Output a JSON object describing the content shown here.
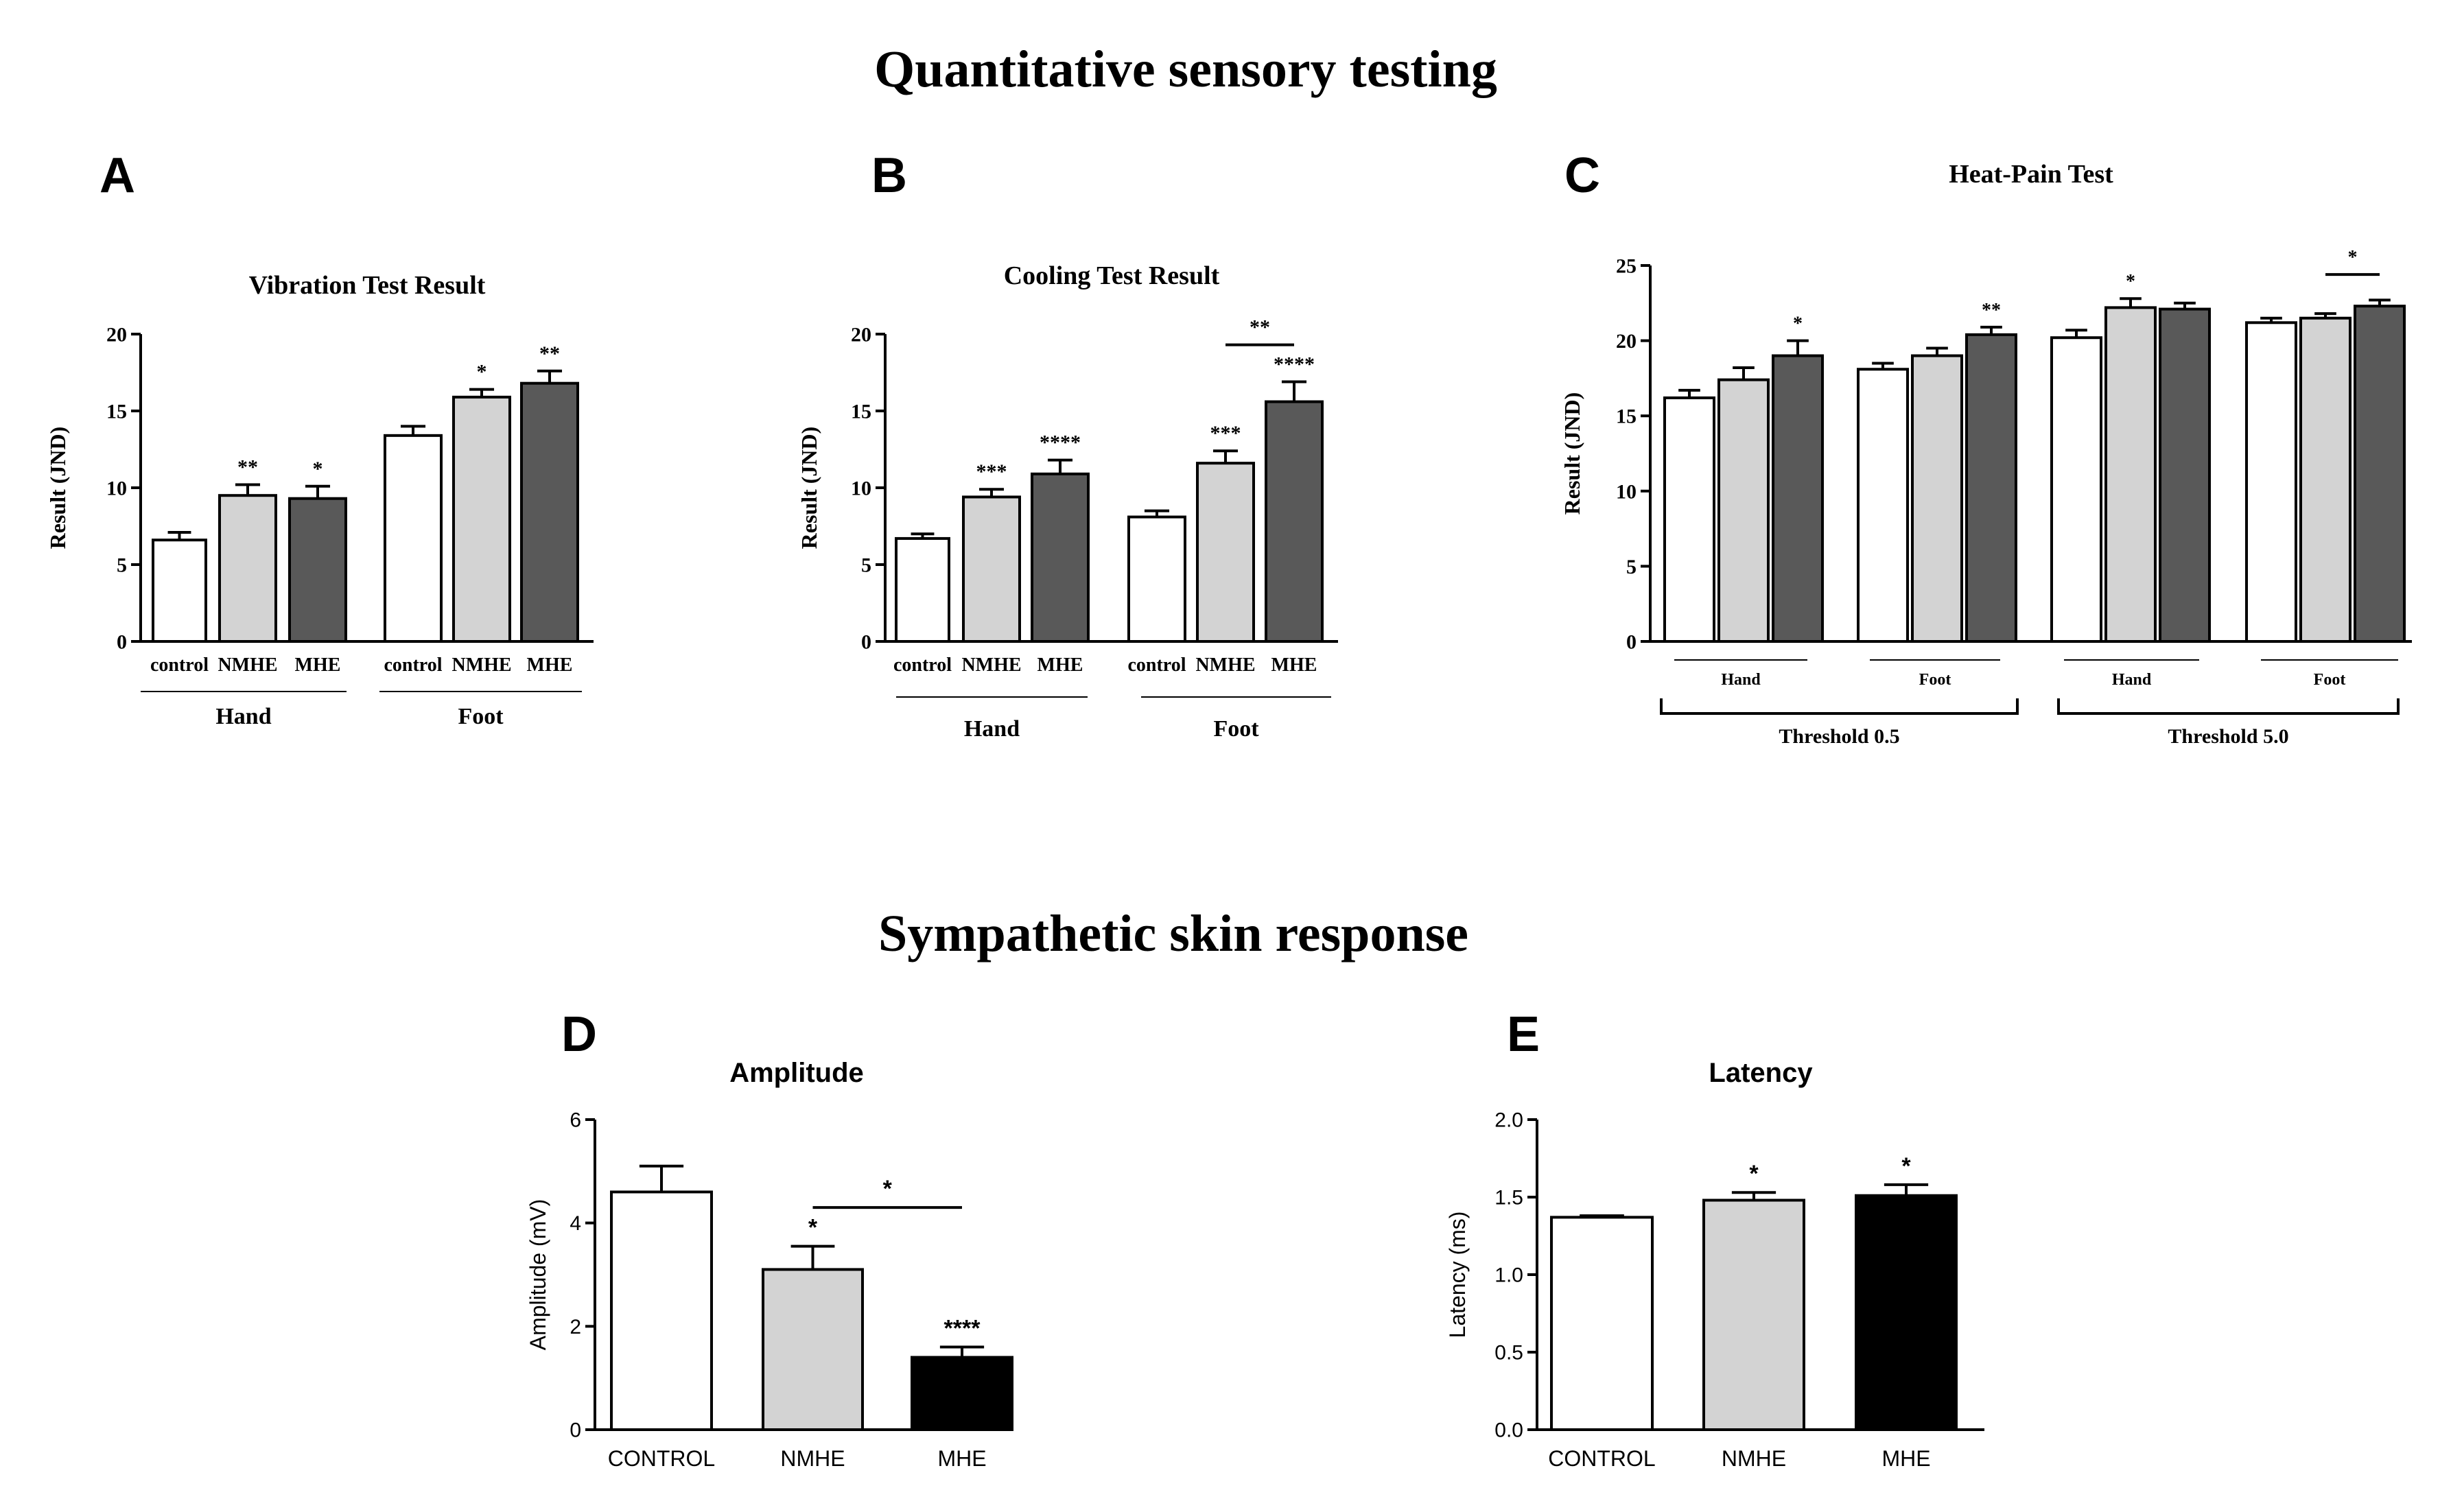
{
  "section_titles": {
    "sensory": "Quantitative sensory testing",
    "sympathetic": "Sympathetic skin response"
  },
  "panel_letters": [
    "A",
    "B",
    "C",
    "D",
    "E"
  ],
  "colors": {
    "control": "#ffffff",
    "nmhe": "#d3d3d3",
    "mhe_qst": "#595959",
    "mhe_ssr": "#000000",
    "ink": "#000000"
  },
  "chart_data": [
    {
      "id": "A",
      "type": "bar",
      "title": "Vibration Test Result",
      "ylabel": "Result (JND)",
      "ylim": [
        0,
        20
      ],
      "yticks": [
        "0",
        "5",
        "10",
        "15",
        "20"
      ],
      "groups": [
        {
          "label": "Hand",
          "bars": [
            {
              "label": "control",
              "series": "control",
              "value": 6.6,
              "err": 0.5,
              "sig": ""
            },
            {
              "label": "NMHE",
              "series": "nmhe",
              "value": 9.5,
              "err": 0.7,
              "sig": "**"
            },
            {
              "label": "MHE",
              "series": "mhe",
              "value": 9.3,
              "err": 0.8,
              "sig": "*"
            }
          ]
        },
        {
          "label": "Foot",
          "bars": [
            {
              "label": "control",
              "series": "control",
              "value": 13.4,
              "err": 0.6,
              "sig": ""
            },
            {
              "label": "NMHE",
              "series": "nmhe",
              "value": 15.9,
              "err": 0.5,
              "sig": "*"
            },
            {
              "label": "MHE",
              "series": "mhe",
              "value": 16.8,
              "err": 0.8,
              "sig": "**"
            }
          ]
        }
      ],
      "comparisons": []
    },
    {
      "id": "B",
      "type": "bar",
      "title": "Cooling Test Result",
      "ylabel": "Result (JND)",
      "ylim": [
        0,
        20
      ],
      "yticks": [
        "0",
        "5",
        "10",
        "15",
        "20"
      ],
      "groups": [
        {
          "label": "Hand",
          "bars": [
            {
              "label": "control",
              "series": "control",
              "value": 6.7,
              "err": 0.3,
              "sig": ""
            },
            {
              "label": "NMHE",
              "series": "nmhe",
              "value": 9.4,
              "err": 0.5,
              "sig": "***"
            },
            {
              "label": "MHE",
              "series": "mhe",
              "value": 10.9,
              "err": 0.9,
              "sig": "****"
            }
          ]
        },
        {
          "label": "Foot",
          "bars": [
            {
              "label": "control",
              "series": "control",
              "value": 8.1,
              "err": 0.4,
              "sig": ""
            },
            {
              "label": "NMHE",
              "series": "nmhe",
              "value": 11.6,
              "err": 0.8,
              "sig": "***"
            },
            {
              "label": "MHE",
              "series": "mhe",
              "value": 15.6,
              "err": 1.3,
              "sig": "****"
            }
          ]
        }
      ],
      "comparisons": [
        {
          "group": 1,
          "from": 1,
          "to": 2,
          "y": 19.3,
          "label": "**"
        }
      ]
    },
    {
      "id": "C",
      "type": "bar",
      "title": "Heat-Pain Test",
      "ylabel": "Result (JND)",
      "ylim": [
        0,
        25
      ],
      "yticks": [
        "0",
        "5",
        "10",
        "15",
        "20",
        "25"
      ],
      "groups": [
        {
          "label": "Hand",
          "bars": [
            {
              "label": "",
              "series": "control",
              "value": 16.2,
              "err": 0.5,
              "sig": ""
            },
            {
              "label": "",
              "series": "nmhe",
              "value": 17.4,
              "err": 0.8,
              "sig": ""
            },
            {
              "label": "",
              "series": "mhe",
              "value": 19.0,
              "err": 1.0,
              "sig": "*"
            }
          ]
        },
        {
          "label": "Foot",
          "bars": [
            {
              "label": "",
              "series": "control",
              "value": 18.1,
              "err": 0.4,
              "sig": ""
            },
            {
              "label": "",
              "series": "nmhe",
              "value": 19.0,
              "err": 0.5,
              "sig": ""
            },
            {
              "label": "",
              "series": "mhe",
              "value": 20.4,
              "err": 0.5,
              "sig": "**"
            }
          ]
        },
        {
          "label": "Hand",
          "bars": [
            {
              "label": "",
              "series": "control",
              "value": 20.2,
              "err": 0.5,
              "sig": ""
            },
            {
              "label": "",
              "series": "nmhe",
              "value": 22.2,
              "err": 0.6,
              "sig": "*"
            },
            {
              "label": "",
              "series": "mhe",
              "value": 22.1,
              "err": 0.4,
              "sig": ""
            }
          ]
        },
        {
          "label": "Foot",
          "bars": [
            {
              "label": "",
              "series": "control",
              "value": 21.2,
              "err": 0.3,
              "sig": ""
            },
            {
              "label": "",
              "series": "nmhe",
              "value": 21.5,
              "err": 0.3,
              "sig": ""
            },
            {
              "label": "",
              "series": "mhe",
              "value": 22.3,
              "err": 0.4,
              "sig": ""
            }
          ]
        }
      ],
      "supergroups": [
        {
          "label": "Threshold 0.5",
          "groups": [
            0,
            1
          ]
        },
        {
          "label": "Threshold 5.0",
          "groups": [
            2,
            3
          ]
        }
      ],
      "comparisons": [
        {
          "group": 3,
          "from": 1,
          "to": 2,
          "y": 24.4,
          "label": "*"
        }
      ]
    },
    {
      "id": "D",
      "type": "bar",
      "title": "Amplitude",
      "ylabel": "Amplitude (mV)",
      "ylim": [
        0,
        6
      ],
      "yticks": [
        "0",
        "2",
        "4",
        "6"
      ],
      "groups": [
        {
          "label": "",
          "bars": [
            {
              "label": "CONTROL",
              "series": "control",
              "value": 4.6,
              "err": 0.5,
              "sig": ""
            },
            {
              "label": "NMHE",
              "series": "nmhe",
              "value": 3.1,
              "err": 0.45,
              "sig": "*"
            },
            {
              "label": "MHE",
              "series": "mhe",
              "value": 1.4,
              "err": 0.2,
              "sig": "****"
            }
          ]
        }
      ],
      "comparisons": [
        {
          "group": 0,
          "from": 1,
          "to": 2,
          "y": 4.3,
          "label": "*"
        }
      ]
    },
    {
      "id": "E",
      "type": "bar",
      "title": "Latency",
      "ylabel": "Latency (ms)",
      "ylim": [
        0,
        2
      ],
      "yticks": [
        "0.0",
        "0.5",
        "1.0",
        "1.5",
        "2.0"
      ],
      "groups": [
        {
          "label": "",
          "bars": [
            {
              "label": "CONTROL",
              "series": "control",
              "value": 1.37,
              "err": 0.01,
              "sig": ""
            },
            {
              "label": "NMHE",
              "series": "nmhe",
              "value": 1.48,
              "err": 0.05,
              "sig": "*"
            },
            {
              "label": "MHE",
              "series": "mhe",
              "value": 1.51,
              "err": 0.07,
              "sig": "*"
            }
          ]
        }
      ],
      "comparisons": []
    }
  ]
}
